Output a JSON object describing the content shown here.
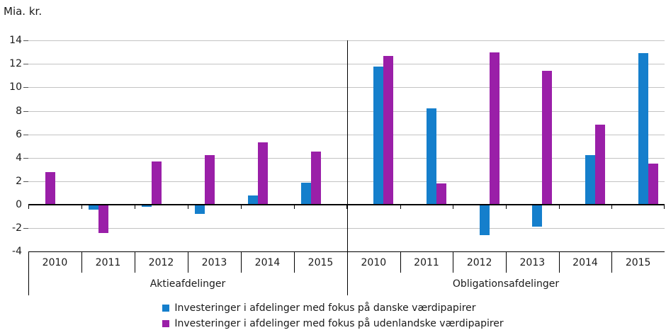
{
  "colors": {
    "gridline": "#C3C3C3",
    "axis": "#000000",
    "tick": "#555555",
    "text": "#1A1A1A",
    "background": "#FFFFFF"
  },
  "chart_data": {
    "type": "bar",
    "title": "",
    "ylabel": "Mia. kr.",
    "xlabel": "",
    "ylim": [
      -4,
      14
    ],
    "yticks": [
      14,
      12,
      10,
      8,
      6,
      4,
      2,
      0,
      -2,
      -4
    ],
    "grid": true,
    "legend_position": "bottom",
    "groups": [
      "Aktieafdelinger",
      "Obligationsafdelinger"
    ],
    "categories": [
      "2010",
      "2011",
      "2012",
      "2013",
      "2014",
      "2015"
    ],
    "series": [
      {
        "name": "Investeringer i afdelinger med fokus på danske værdipapirer",
        "color": "#157FCC",
        "values": [
          [
            0.0,
            -0.4,
            -0.2,
            -0.8,
            0.8,
            1.9
          ],
          [
            11.8,
            8.2,
            -2.6,
            -1.9,
            4.2,
            12.9
          ]
        ]
      },
      {
        "name": "Investeringer i afdelinger med fokus på udenlandske værdipapirer",
        "color": "#9A1FA8",
        "values": [
          [
            2.8,
            -2.4,
            3.7,
            4.2,
            5.3,
            4.5
          ],
          [
            12.7,
            1.8,
            13.0,
            11.4,
            6.8,
            3.5
          ]
        ]
      }
    ]
  }
}
